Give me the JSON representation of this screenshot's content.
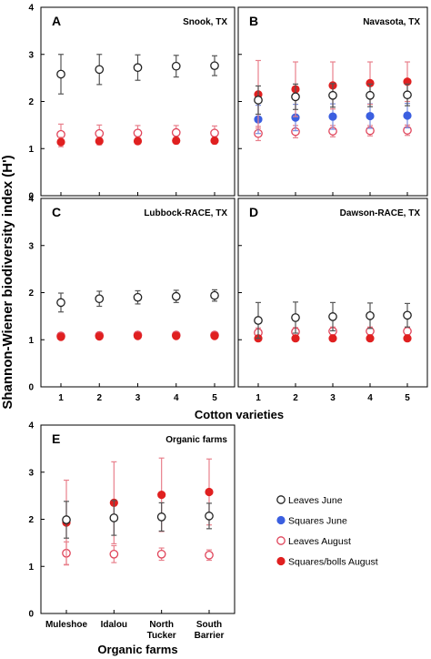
{
  "chart_data": {
    "type": "scatter",
    "error_bars": true,
    "ylabel": "Shannon-Wiener biodiversity index (H')",
    "ylim": [
      0,
      4
    ],
    "yticks": [
      0,
      1,
      2,
      3,
      4
    ],
    "legend": {
      "placement": "right of panel E",
      "entries": [
        {
          "key": "leaves_june",
          "label": "Leaves June",
          "marker": "open-circle",
          "color": "#222222"
        },
        {
          "key": "squares_june",
          "label": "Squares June",
          "marker": "filled-circle",
          "color": "#3b5fe0"
        },
        {
          "key": "leaves_august",
          "label": "Leaves August",
          "marker": "open-circle",
          "color": "#e0445a"
        },
        {
          "key": "squares_bolls_august",
          "label": "Squares/bolls August",
          "marker": "filled-circle",
          "color": "#e02020"
        }
      ]
    },
    "panels": [
      {
        "letter": "A",
        "site": "Snook, TX",
        "categories": [
          "1",
          "2",
          "3",
          "4",
          "5"
        ],
        "series": [
          {
            "key": "leaves_june",
            "values": [
              2.58,
              2.68,
              2.72,
              2.75,
              2.76
            ],
            "errors": [
              0.42,
              0.32,
              0.27,
              0.23,
              0.21
            ]
          },
          {
            "key": "leaves_august",
            "values": [
              1.3,
              1.32,
              1.33,
              1.34,
              1.33
            ],
            "errors": [
              0.22,
              0.18,
              0.16,
              0.15,
              0.15
            ]
          },
          {
            "key": "squares_bolls_august",
            "values": [
              1.14,
              1.16,
              1.16,
              1.17,
              1.17
            ],
            "errors": [
              0.1,
              0.08,
              0.07,
              0.07,
              0.07
            ]
          }
        ]
      },
      {
        "letter": "B",
        "site": "Navasota, TX",
        "categories": [
          "1",
          "2",
          "3",
          "4",
          "5"
        ],
        "series": [
          {
            "key": "leaves_june",
            "values": [
              2.03,
              2.1,
              2.13,
              2.13,
              2.14
            ],
            "errors": [
              0.3,
              0.27,
              0.25,
              0.24,
              0.23
            ]
          },
          {
            "key": "squares_june",
            "values": [
              1.62,
              1.66,
              1.68,
              1.69,
              1.7
            ],
            "errors": [
              0.3,
              0.28,
              0.27,
              0.26,
              0.26
            ]
          },
          {
            "key": "leaves_august",
            "values": [
              1.32,
              1.36,
              1.37,
              1.38,
              1.39
            ],
            "errors": [
              0.15,
              0.13,
              0.12,
              0.11,
              0.11
            ]
          },
          {
            "key": "squares_bolls_august",
            "values": [
              2.15,
              2.26,
              2.34,
              2.39,
              2.42
            ],
            "errors": [
              0.72,
              0.58,
              0.5,
              0.45,
              0.42
            ]
          }
        ]
      },
      {
        "letter": "C",
        "site": "Lubbock-RACE, TX",
        "categories": [
          "1",
          "2",
          "3",
          "4",
          "5"
        ],
        "series": [
          {
            "key": "leaves_june",
            "values": [
              1.79,
              1.87,
              1.9,
              1.92,
              1.94
            ],
            "errors": [
              0.2,
              0.16,
              0.14,
              0.13,
              0.12
            ]
          },
          {
            "key": "leaves_august",
            "values": [
              1.08,
              1.09,
              1.1,
              1.1,
              1.1
            ],
            "errors": [
              0.06,
              0.05,
              0.05,
              0.05,
              0.05
            ]
          },
          {
            "key": "squares_bolls_august",
            "values": [
              1.06,
              1.07,
              1.08,
              1.08,
              1.08
            ],
            "errors": [
              0.05,
              0.04,
              0.04,
              0.04,
              0.04
            ]
          }
        ]
      },
      {
        "letter": "D",
        "site": "Dawson-RACE, TX",
        "categories": [
          "1",
          "2",
          "3",
          "4",
          "5"
        ],
        "series": [
          {
            "key": "leaves_june",
            "values": [
              1.41,
              1.47,
              1.49,
              1.51,
              1.52
            ],
            "errors": [
              0.38,
              0.33,
              0.3,
              0.27,
              0.25
            ]
          },
          {
            "key": "leaves_august",
            "values": [
              1.15,
              1.17,
              1.18,
              1.18,
              1.18
            ],
            "errors": [
              0.1,
              0.09,
              0.09,
              0.09,
              0.09
            ]
          },
          {
            "key": "squares_bolls_august",
            "values": [
              1.03,
              1.03,
              1.03,
              1.03,
              1.03
            ],
            "errors": [
              0.04,
              0.04,
              0.04,
              0.04,
              0.04
            ]
          }
        ]
      },
      {
        "letter": "E",
        "site": "Organic farms",
        "xlabel": "Organic farms",
        "categories": [
          "Muleshoe",
          "Idalou",
          "North Tucker",
          "South Barrier"
        ],
        "series": [
          {
            "key": "leaves_june",
            "values": [
              1.99,
              2.03,
              2.05,
              2.07
            ],
            "errors": [
              0.39,
              0.37,
              0.3,
              0.27
            ]
          },
          {
            "key": "leaves_august",
            "values": [
              1.28,
              1.26,
              1.26,
              1.24
            ],
            "errors": [
              0.24,
              0.18,
              0.13,
              0.11
            ]
          },
          {
            "key": "squares_bolls_august",
            "values": [
              1.93,
              2.35,
              2.52,
              2.58
            ],
            "errors": [
              0.9,
              0.87,
              0.78,
              0.7
            ]
          }
        ]
      }
    ],
    "shared_xlabel_top": "Cotton varieties"
  }
}
